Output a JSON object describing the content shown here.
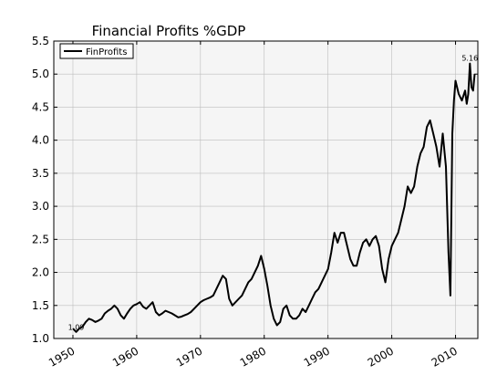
{
  "chart_data": {
    "type": "line",
    "title": "Financial Profits %GDP",
    "xlabel": "",
    "ylabel": "",
    "xlim": [
      1947,
      2013.5
    ],
    "ylim": [
      1.0,
      5.5
    ],
    "grid": true,
    "legend_position": "top-left",
    "x_ticks": [
      1950,
      1960,
      1970,
      1980,
      1990,
      2000,
      2010
    ],
    "x_tick_labels": [
      "1950",
      "1960",
      "1970",
      "1980",
      "1990",
      "2000",
      "2010"
    ],
    "y_ticks": [
      1.0,
      1.5,
      2.0,
      2.5,
      3.0,
      3.5,
      4.0,
      4.5,
      5.0,
      5.5
    ],
    "y_tick_labels": [
      "1.0",
      "1.5",
      "2.0",
      "2.5",
      "3.0",
      "3.5",
      "4.0",
      "4.5",
      "5.0",
      "5.5"
    ],
    "plot_background": "#f5f5f5",
    "line_color": "#000000",
    "series": [
      {
        "name": "FinProfits",
        "x": [
          1950.0,
          1950.5,
          1951.0,
          1951.5,
          1952.0,
          1952.5,
          1953.0,
          1953.5,
          1954.0,
          1954.5,
          1955.0,
          1955.5,
          1956.0,
          1956.5,
          1957.0,
          1957.5,
          1958.0,
          1958.5,
          1959.0,
          1959.5,
          1960.0,
          1960.5,
          1961.0,
          1961.5,
          1962.0,
          1962.5,
          1963.0,
          1963.5,
          1964.0,
          1964.5,
          1965.0,
          1965.5,
          1966.0,
          1966.5,
          1967.0,
          1967.5,
          1968.0,
          1968.5,
          1969.0,
          1969.5,
          1970.0,
          1970.5,
          1971.0,
          1971.5,
          1972.0,
          1972.5,
          1973.0,
          1973.5,
          1974.0,
          1974.5,
          1975.0,
          1975.5,
          1976.0,
          1976.5,
          1977.0,
          1977.5,
          1978.0,
          1978.5,
          1979.0,
          1979.5,
          1980.0,
          1980.5,
          1981.0,
          1981.5,
          1982.0,
          1982.5,
          1983.0,
          1983.5,
          1984.0,
          1984.5,
          1985.0,
          1985.5,
          1986.0,
          1986.5,
          1987.0,
          1987.5,
          1988.0,
          1988.5,
          1989.0,
          1989.5,
          1990.0,
          1990.5,
          1991.0,
          1991.5,
          1992.0,
          1992.5,
          1993.0,
          1993.5,
          1994.0,
          1994.5,
          1995.0,
          1995.5,
          1996.0,
          1996.5,
          1997.0,
          1997.5,
          1998.0,
          1998.5,
          1999.0,
          1999.5,
          2000.0,
          2000.5,
          2001.0,
          2001.5,
          2002.0,
          2002.5,
          2003.0,
          2003.5,
          2004.0,
          2004.5,
          2005.0,
          2005.5,
          2006.0,
          2006.5,
          2007.0,
          2007.5,
          2008.0,
          2008.5,
          2008.9,
          2009.2,
          2009.5,
          2009.75,
          2010.0,
          2010.5,
          2011.0,
          2011.5,
          2011.75,
          2012.0,
          2012.25,
          2012.5,
          2012.75,
          2013.0
        ],
        "values": [
          1.15,
          1.1,
          1.15,
          1.18,
          1.25,
          1.3,
          1.28,
          1.25,
          1.27,
          1.3,
          1.38,
          1.42,
          1.45,
          1.5,
          1.45,
          1.35,
          1.3,
          1.38,
          1.45,
          1.5,
          1.52,
          1.55,
          1.48,
          1.45,
          1.5,
          1.55,
          1.4,
          1.35,
          1.38,
          1.42,
          1.4,
          1.38,
          1.35,
          1.32,
          1.33,
          1.35,
          1.37,
          1.4,
          1.45,
          1.5,
          1.55,
          1.58,
          1.6,
          1.62,
          1.65,
          1.75,
          1.85,
          1.95,
          1.9,
          1.6,
          1.5,
          1.55,
          1.6,
          1.65,
          1.75,
          1.85,
          1.9,
          2.0,
          2.1,
          2.25,
          2.05,
          1.8,
          1.5,
          1.3,
          1.2,
          1.25,
          1.45,
          1.5,
          1.35,
          1.3,
          1.3,
          1.35,
          1.45,
          1.4,
          1.5,
          1.6,
          1.7,
          1.75,
          1.85,
          1.95,
          2.05,
          2.3,
          2.6,
          2.45,
          2.6,
          2.6,
          2.4,
          2.2,
          2.1,
          2.1,
          2.3,
          2.45,
          2.5,
          2.4,
          2.5,
          2.55,
          2.4,
          2.05,
          1.85,
          2.2,
          2.4,
          2.5,
          2.6,
          2.8,
          3.0,
          3.3,
          3.2,
          3.3,
          3.6,
          3.8,
          3.9,
          4.2,
          4.3,
          4.1,
          3.9,
          3.6,
          4.1,
          3.6,
          2.3,
          1.65,
          4.1,
          4.6,
          4.9,
          4.7,
          4.6,
          4.75,
          4.55,
          4.7,
          5.16,
          4.8,
          4.75,
          5.0
        ]
      }
    ],
    "annotations": [
      {
        "text": "1.09",
        "x": 1950.5,
        "y": 1.09
      },
      {
        "text": "5.16",
        "x": 2012.25,
        "y": 5.16
      }
    ]
  }
}
